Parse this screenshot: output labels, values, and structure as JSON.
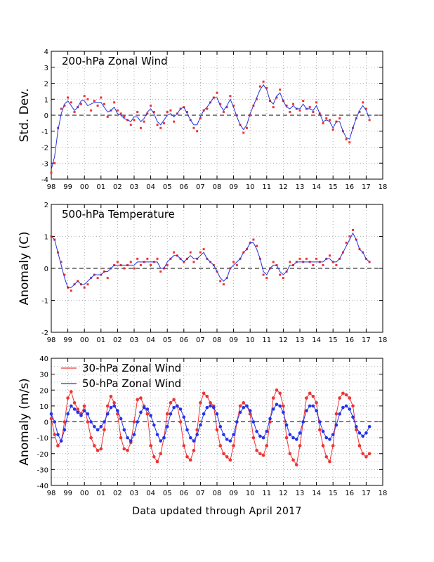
{
  "footer": "Data updated through April 2017",
  "x_tick_labels": [
    "98",
    "99",
    "00",
    "01",
    "02",
    "03",
    "04",
    "05",
    "06",
    "07",
    "08",
    "09",
    "10",
    "11",
    "12",
    "13",
    "14",
    "15",
    "16",
    "17",
    "18"
  ],
  "colors": {
    "points": "#ee3333",
    "line": "#2233dd",
    "blue_points": "#2233ee",
    "grid": "#999999"
  },
  "chart_data": [
    {
      "type": "line",
      "title": "200-hPa Zonal Wind",
      "ylabel": "Std. Dev.",
      "xlim": [
        1998,
        2018
      ],
      "ylim": [
        -4,
        4
      ],
      "yticks": [
        -4,
        -3,
        -2,
        -1,
        0,
        1,
        2,
        3,
        4
      ],
      "grid": true,
      "x": [
        1998.0,
        1998.2,
        1998.4,
        1998.6,
        1998.8,
        1999.0,
        1999.2,
        1999.4,
        1999.6,
        1999.8,
        2000.0,
        2000.2,
        2000.4,
        2000.6,
        2000.8,
        2001.0,
        2001.2,
        2001.4,
        2001.6,
        2001.8,
        2002.0,
        2002.2,
        2002.4,
        2002.6,
        2002.8,
        2003.0,
        2003.2,
        2003.4,
        2003.6,
        2003.8,
        2004.0,
        2004.2,
        2004.4,
        2004.6,
        2004.8,
        2005.0,
        2005.2,
        2005.4,
        2005.6,
        2005.8,
        2006.0,
        2006.2,
        2006.4,
        2006.6,
        2006.8,
        2007.0,
        2007.2,
        2007.4,
        2007.6,
        2007.8,
        2008.0,
        2008.2,
        2008.4,
        2008.6,
        2008.8,
        2009.0,
        2009.2,
        2009.4,
        2009.6,
        2009.8,
        2010.0,
        2010.2,
        2010.4,
        2010.6,
        2010.8,
        2011.0,
        2011.2,
        2011.4,
        2011.6,
        2011.8,
        2012.0,
        2012.2,
        2012.4,
        2012.6,
        2012.8,
        2013.0,
        2013.2,
        2013.4,
        2013.6,
        2013.8,
        2014.0,
        2014.2,
        2014.4,
        2014.6,
        2014.8,
        2015.0,
        2015.2,
        2015.4,
        2015.6,
        2015.8,
        2016.0,
        2016.2,
        2016.4,
        2016.6,
        2016.8,
        2017.0,
        2017.2
      ],
      "series": [
        {
          "style": "points",
          "values": [
            -3.6,
            -3.0,
            -0.8,
            0.4,
            0.6,
            1.1,
            0.8,
            0.2,
            0.5,
            0.7,
            1.2,
            1.0,
            0.3,
            0.9,
            0.6,
            1.1,
            0.7,
            -0.1,
            0.3,
            0.8,
            0.3,
            0.1,
            -0.1,
            -0.3,
            -0.6,
            -0.3,
            0.2,
            -0.8,
            -0.4,
            0.1,
            0.6,
            0.2,
            -0.6,
            -0.8,
            -0.5,
            0.2,
            0.3,
            -0.4,
            0.1,
            0.4,
            0.5,
            0.2,
            -0.3,
            -0.8,
            -1.0,
            -0.2,
            0.3,
            0.4,
            0.8,
            1.1,
            1.4,
            0.7,
            0.2,
            0.5,
            1.2,
            0.6,
            0.0,
            -0.6,
            -1.1,
            -0.8,
            0.0,
            0.6,
            1.0,
            1.8,
            2.1,
            1.7,
            0.9,
            0.5,
            1.1,
            1.6,
            0.9,
            0.6,
            0.2,
            0.7,
            0.4,
            0.3,
            0.9,
            0.4,
            0.5,
            0.2,
            0.8,
            0.1,
            -0.5,
            -0.2,
            -0.3,
            -0.9,
            -0.4,
            -0.2,
            -1.0,
            -1.5,
            -1.7,
            -0.8,
            -0.2,
            0.2,
            0.8,
            0.4,
            -0.3
          ]
        },
        {
          "style": "line",
          "values": [
            -3.4,
            -2.6,
            -1.0,
            0.1,
            0.7,
            0.9,
            0.6,
            0.3,
            0.5,
            0.9,
            0.9,
            0.6,
            0.7,
            0.8,
            0.8,
            0.8,
            0.5,
            0.2,
            0.3,
            0.5,
            0.1,
            0.0,
            -0.2,
            -0.3,
            -0.4,
            -0.1,
            -0.1,
            -0.4,
            -0.2,
            0.2,
            0.4,
            0.1,
            -0.4,
            -0.6,
            -0.3,
            0.0,
            0.1,
            -0.1,
            0.1,
            0.4,
            0.5,
            0.1,
            -0.3,
            -0.6,
            -0.6,
            -0.1,
            0.3,
            0.5,
            0.8,
            1.1,
            1.1,
            0.6,
            0.3,
            0.6,
            1.0,
            0.5,
            -0.1,
            -0.6,
            -0.9,
            -0.6,
            0.1,
            0.6,
            1.1,
            1.6,
            1.9,
            1.6,
            0.9,
            0.7,
            1.2,
            1.4,
            0.9,
            0.5,
            0.4,
            0.6,
            0.4,
            0.4,
            0.7,
            0.4,
            0.4,
            0.3,
            0.6,
            0.1,
            -0.4,
            -0.3,
            -0.4,
            -0.8,
            -0.4,
            -0.4,
            -1.0,
            -1.4,
            -1.5,
            -0.8,
            -0.2,
            0.3,
            0.6,
            0.3,
            -0.2
          ]
        }
      ]
    },
    {
      "type": "line",
      "title": "500-hPa Temperature",
      "ylabel": "Anomaly (C)",
      "xlim": [
        1998,
        2018
      ],
      "ylim": [
        -2,
        2
      ],
      "yticks": [
        -2,
        -1,
        0,
        1,
        2
      ],
      "grid": true,
      "x": [
        1998.0,
        1998.2,
        1998.4,
        1998.6,
        1998.8,
        1999.0,
        1999.2,
        1999.4,
        1999.6,
        1999.8,
        2000.0,
        2000.2,
        2000.4,
        2000.6,
        2000.8,
        2001.0,
        2001.2,
        2001.4,
        2001.6,
        2001.8,
        2002.0,
        2002.2,
        2002.4,
        2002.6,
        2002.8,
        2003.0,
        2003.2,
        2003.4,
        2003.6,
        2003.8,
        2004.0,
        2004.2,
        2004.4,
        2004.6,
        2004.8,
        2005.0,
        2005.2,
        2005.4,
        2005.6,
        2005.8,
        2006.0,
        2006.2,
        2006.4,
        2006.6,
        2006.8,
        2007.0,
        2007.2,
        2007.4,
        2007.6,
        2007.8,
        2008.0,
        2008.2,
        2008.4,
        2008.6,
        2008.8,
        2009.0,
        2009.2,
        2009.4,
        2009.6,
        2009.8,
        2010.0,
        2010.2,
        2010.4,
        2010.6,
        2010.8,
        2011.0,
        2011.2,
        2011.4,
        2011.6,
        2011.8,
        2012.0,
        2012.2,
        2012.4,
        2012.6,
        2012.8,
        2013.0,
        2013.2,
        2013.4,
        2013.6,
        2013.8,
        2014.0,
        2014.2,
        2014.4,
        2014.6,
        2014.8,
        2015.0,
        2015.2,
        2015.4,
        2015.6,
        2015.8,
        2016.0,
        2016.2,
        2016.4,
        2016.6,
        2016.8,
        2017.0,
        2017.2
      ],
      "series": [
        {
          "style": "points",
          "values": [
            1.0,
            0.9,
            0.5,
            0.2,
            -0.2,
            -0.6,
            -0.7,
            -0.5,
            -0.4,
            -0.5,
            -0.6,
            -0.5,
            -0.3,
            -0.2,
            -0.3,
            -0.2,
            -0.1,
            -0.3,
            0.0,
            0.1,
            0.2,
            0.1,
            0.0,
            0.1,
            0.2,
            0.0,
            0.3,
            0.1,
            0.2,
            0.3,
            0.1,
            0.2,
            0.3,
            -0.1,
            0.0,
            0.1,
            0.3,
            0.5,
            0.4,
            0.3,
            0.2,
            0.3,
            0.5,
            0.2,
            0.3,
            0.5,
            0.6,
            0.3,
            0.2,
            0.1,
            -0.1,
            -0.4,
            -0.5,
            -0.3,
            0.0,
            0.2,
            0.1,
            0.3,
            0.5,
            0.6,
            0.8,
            0.9,
            0.7,
            0.3,
            -0.2,
            -0.3,
            0.0,
            0.2,
            0.1,
            -0.2,
            -0.3,
            -0.1,
            0.2,
            0.1,
            0.2,
            0.3,
            0.2,
            0.3,
            0.2,
            0.1,
            0.3,
            0.2,
            0.1,
            0.3,
            0.4,
            0.2,
            0.1,
            0.3,
            0.5,
            0.8,
            1.0,
            1.2,
            0.9,
            0.6,
            0.5,
            0.3,
            0.2
          ]
        },
        {
          "style": "line",
          "values": [
            1.0,
            0.9,
            0.5,
            0.1,
            -0.3,
            -0.6,
            -0.6,
            -0.5,
            -0.4,
            -0.5,
            -0.5,
            -0.4,
            -0.3,
            -0.2,
            -0.2,
            -0.2,
            -0.1,
            -0.1,
            0.0,
            0.1,
            0.1,
            0.1,
            0.1,
            0.1,
            0.1,
            0.1,
            0.2,
            0.2,
            0.2,
            0.2,
            0.2,
            0.2,
            0.2,
            0.0,
            0.0,
            0.2,
            0.3,
            0.4,
            0.4,
            0.3,
            0.2,
            0.3,
            0.4,
            0.3,
            0.3,
            0.4,
            0.5,
            0.3,
            0.2,
            0.1,
            -0.1,
            -0.3,
            -0.4,
            -0.3,
            0.0,
            0.1,
            0.2,
            0.3,
            0.5,
            0.6,
            0.8,
            0.8,
            0.6,
            0.3,
            -0.1,
            -0.2,
            0.0,
            0.1,
            0.1,
            -0.1,
            -0.2,
            -0.1,
            0.1,
            0.1,
            0.2,
            0.2,
            0.2,
            0.2,
            0.2,
            0.2,
            0.2,
            0.2,
            0.2,
            0.3,
            0.3,
            0.2,
            0.2,
            0.3,
            0.5,
            0.7,
            0.9,
            1.1,
            0.9,
            0.6,
            0.5,
            0.3,
            0.2
          ]
        }
      ]
    },
    {
      "type": "scatter",
      "ylabel": "Anomaly (m/s)",
      "xlim": [
        1998,
        2018
      ],
      "ylim": [
        -40,
        40
      ],
      "yticks": [
        -40,
        -30,
        -20,
        -10,
        0,
        10,
        20,
        30,
        40
      ],
      "grid": true,
      "legend": "top-left",
      "x": [
        1998.0,
        1998.2,
        1998.4,
        1998.6,
        1998.8,
        1999.0,
        1999.2,
        1999.4,
        1999.6,
        1999.8,
        2000.0,
        2000.2,
        2000.4,
        2000.6,
        2000.8,
        2001.0,
        2001.2,
        2001.4,
        2001.6,
        2001.8,
        2002.0,
        2002.2,
        2002.4,
        2002.6,
        2002.8,
        2003.0,
        2003.2,
        2003.4,
        2003.6,
        2003.8,
        2004.0,
        2004.2,
        2004.4,
        2004.6,
        2004.8,
        2005.0,
        2005.2,
        2005.4,
        2005.6,
        2005.8,
        2006.0,
        2006.2,
        2006.4,
        2006.6,
        2006.8,
        2007.0,
        2007.2,
        2007.4,
        2007.6,
        2007.8,
        2008.0,
        2008.2,
        2008.4,
        2008.6,
        2008.8,
        2009.0,
        2009.2,
        2009.4,
        2009.6,
        2009.8,
        2010.0,
        2010.2,
        2010.4,
        2010.6,
        2010.8,
        2011.0,
        2011.2,
        2011.4,
        2011.6,
        2011.8,
        2012.0,
        2012.2,
        2012.4,
        2012.6,
        2012.8,
        2013.0,
        2013.2,
        2013.4,
        2013.6,
        2013.8,
        2014.0,
        2014.2,
        2014.4,
        2014.6,
        2014.8,
        2015.0,
        2015.2,
        2015.4,
        2015.6,
        2015.8,
        2016.0,
        2016.2,
        2016.4,
        2016.6,
        2016.8,
        2017.0,
        2017.2
      ],
      "series": [
        {
          "name": "30-hPa Zonal Wind",
          "values": [
            2,
            -8,
            -15,
            -12,
            0,
            15,
            19,
            12,
            8,
            5,
            10,
            0,
            -10,
            -15,
            -18,
            -17,
            -5,
            10,
            16,
            12,
            5,
            -10,
            -17,
            -18,
            -13,
            0,
            14,
            15,
            10,
            5,
            -15,
            -22,
            -25,
            -20,
            -10,
            5,
            12,
            14,
            10,
            0,
            -15,
            -22,
            -24,
            -18,
            -5,
            12,
            18,
            16,
            12,
            10,
            -5,
            -15,
            -20,
            -22,
            -24,
            -15,
            0,
            10,
            12,
            10,
            5,
            -10,
            -18,
            -20,
            -21,
            -15,
            0,
            15,
            20,
            18,
            10,
            -10,
            -20,
            -24,
            -27,
            -15,
            0,
            15,
            18,
            16,
            12,
            -5,
            -15,
            -22,
            -25,
            -15,
            5,
            15,
            18,
            17,
            15,
            10,
            -5,
            -15,
            -20,
            -22,
            -20
          ]
        },
        {
          "name": "50-hPa Zonal Wind",
          "values": [
            5,
            0,
            -8,
            -12,
            -5,
            5,
            10,
            8,
            6,
            4,
            7,
            5,
            0,
            -3,
            -5,
            -3,
            0,
            5,
            9,
            10,
            7,
            2,
            -5,
            -10,
            -12,
            -8,
            0,
            6,
            9,
            8,
            4,
            -2,
            -8,
            -12,
            -10,
            -3,
            5,
            9,
            10,
            8,
            3,
            -5,
            -10,
            -12,
            -8,
            -2,
            5,
            9,
            10,
            9,
            5,
            -3,
            -8,
            -11,
            -12,
            -8,
            0,
            6,
            9,
            10,
            7,
            0,
            -6,
            -9,
            -10,
            -6,
            2,
            8,
            11,
            10,
            6,
            -2,
            -8,
            -10,
            -11,
            -7,
            0,
            7,
            10,
            10,
            7,
            0,
            -6,
            -10,
            -11,
            -8,
            -2,
            5,
            9,
            10,
            8,
            3,
            -3,
            -7,
            -9,
            -7,
            -3
          ]
        }
      ]
    }
  ]
}
